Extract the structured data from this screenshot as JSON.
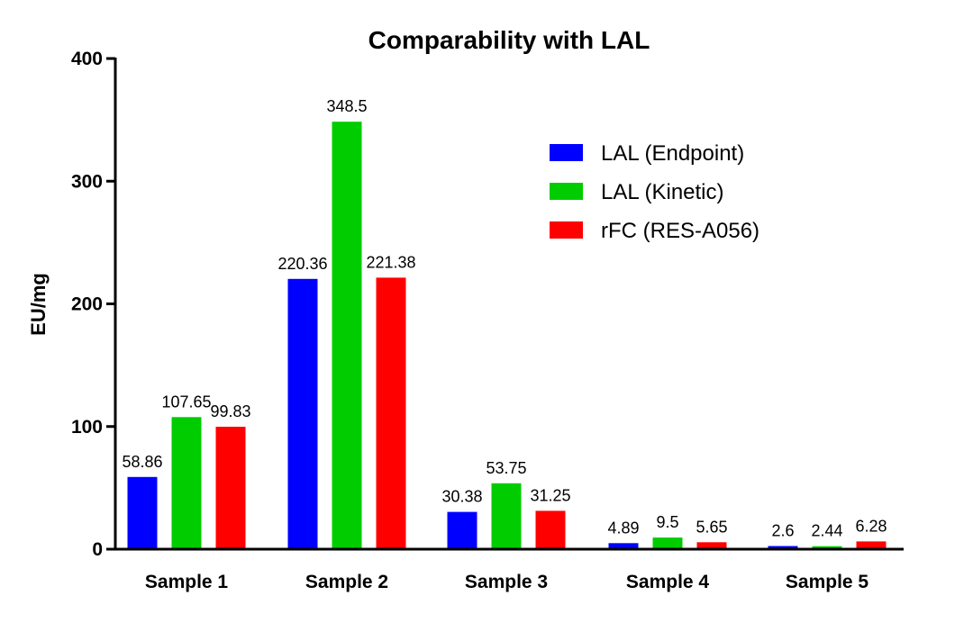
{
  "chart_data": {
    "type": "bar",
    "title": "Comparability with LAL",
    "xlabel": "",
    "ylabel": "EU/mg",
    "ylim": [
      0,
      400
    ],
    "yticks": [
      0,
      100,
      200,
      300,
      400
    ],
    "categories": [
      "Sample 1",
      "Sample 2",
      "Sample 3",
      "Sample 4",
      "Sample 5"
    ],
    "series": [
      {
        "name": "LAL (Endpoint)",
        "color": "#0000ff",
        "values": [
          58.86,
          220.36,
          30.38,
          4.89,
          2.6
        ]
      },
      {
        "name": "LAL (Kinetic)",
        "color": "#00cc00",
        "values": [
          107.65,
          348.5,
          53.75,
          9.5,
          2.44
        ]
      },
      {
        "name": "rFC (RES-A056)",
        "color": "#ff0000",
        "values": [
          99.83,
          221.38,
          31.25,
          5.65,
          6.28
        ]
      }
    ],
    "legend_position": "top-right",
    "grid": false
  }
}
